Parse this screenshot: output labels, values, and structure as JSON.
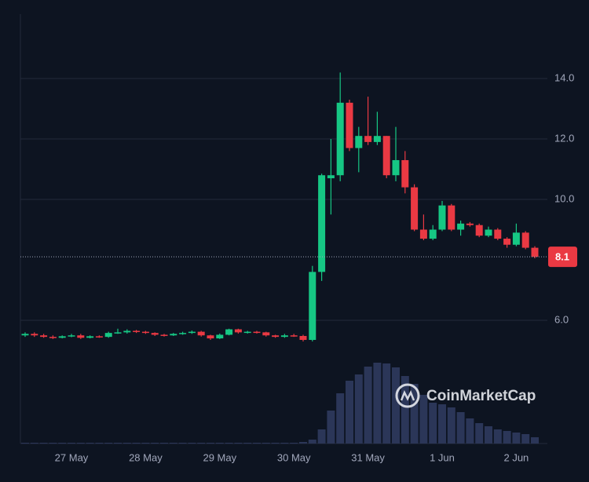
{
  "chart_data": {
    "type": "candlestick",
    "categories": [
      null,
      null,
      null,
      null,
      null,
      "27 May",
      null,
      null,
      null,
      null,
      null,
      null,
      null,
      "28 May",
      null,
      null,
      null,
      null,
      null,
      null,
      null,
      "29 May",
      null,
      null,
      null,
      null,
      null,
      null,
      null,
      "30 May",
      null,
      null,
      null,
      null,
      null,
      null,
      null,
      "31 May",
      null,
      null,
      null,
      null,
      null,
      null,
      null,
      "1 Jun",
      null,
      null,
      null,
      null,
      null,
      null,
      null,
      "2 Jun",
      null,
      null
    ],
    "open": [
      5.5,
      5.55,
      5.5,
      5.45,
      5.42,
      5.47,
      5.5,
      5.42,
      5.47,
      5.45,
      5.58,
      5.6,
      5.65,
      5.62,
      5.58,
      5.52,
      5.5,
      5.55,
      5.58,
      5.62,
      5.5,
      5.4,
      5.52,
      5.7,
      5.6,
      5.62,
      5.6,
      5.5,
      5.45,
      5.5,
      5.48,
      5.35,
      7.6,
      10.7,
      10.8,
      13.2,
      11.7,
      12.1,
      11.9,
      12.1,
      10.8,
      11.3,
      10.4,
      9.0,
      8.7,
      9.0,
      9.8,
      9.0,
      9.2,
      9.15,
      8.8,
      9.0,
      8.7,
      8.5,
      8.9,
      8.4
    ],
    "high": [
      5.6,
      5.6,
      5.55,
      5.5,
      5.5,
      5.55,
      5.55,
      5.5,
      5.5,
      5.62,
      5.72,
      5.7,
      5.68,
      5.65,
      5.6,
      5.55,
      5.58,
      5.62,
      5.66,
      5.65,
      5.52,
      5.56,
      5.72,
      5.72,
      5.65,
      5.65,
      5.62,
      5.52,
      5.55,
      5.55,
      5.52,
      7.8,
      10.85,
      12.0,
      14.2,
      13.3,
      12.4,
      13.4,
      12.9,
      12.1,
      12.4,
      11.6,
      10.5,
      9.5,
      9.15,
      9.95,
      9.85,
      9.3,
      9.25,
      9.2,
      9.1,
      9.05,
      8.75,
      9.2,
      8.95,
      8.45
    ],
    "low": [
      5.45,
      5.45,
      5.42,
      5.38,
      5.4,
      5.44,
      5.38,
      5.4,
      5.42,
      5.42,
      5.55,
      5.56,
      5.58,
      5.55,
      5.48,
      5.46,
      5.48,
      5.52,
      5.55,
      5.46,
      5.35,
      5.38,
      5.5,
      5.56,
      5.56,
      5.56,
      5.46,
      5.42,
      5.42,
      5.45,
      5.3,
      5.3,
      7.3,
      9.5,
      10.6,
      11.6,
      10.9,
      11.8,
      11.8,
      10.7,
      10.6,
      10.2,
      8.95,
      8.65,
      8.65,
      8.95,
      8.95,
      8.8,
      9.1,
      8.75,
      8.75,
      8.65,
      8.4,
      8.45,
      8.35,
      8.05
    ],
    "close": [
      5.55,
      5.5,
      5.45,
      5.42,
      5.47,
      5.5,
      5.42,
      5.47,
      5.45,
      5.58,
      5.6,
      5.65,
      5.62,
      5.58,
      5.52,
      5.5,
      5.55,
      5.58,
      5.62,
      5.5,
      5.4,
      5.52,
      5.7,
      5.6,
      5.62,
      5.6,
      5.5,
      5.45,
      5.5,
      5.48,
      5.35,
      7.6,
      10.8,
      10.8,
      13.2,
      11.7,
      12.1,
      11.9,
      12.1,
      10.8,
      11.3,
      10.4,
      9.0,
      8.7,
      9.0,
      9.8,
      9.0,
      9.2,
      9.15,
      8.8,
      9.0,
      8.7,
      8.5,
      8.9,
      8.4,
      8.1
    ],
    "volume": [
      1,
      1,
      1,
      1,
      1,
      1,
      1,
      1,
      1,
      1,
      1,
      1,
      1,
      1,
      1,
      1,
      1,
      1,
      1,
      1,
      1,
      1,
      1,
      1,
      1,
      1,
      1,
      1,
      1,
      1,
      2,
      5,
      18,
      42,
      64,
      80,
      88,
      98,
      103,
      102,
      97,
      86,
      76,
      62,
      52,
      50,
      46,
      40,
      32,
      26,
      22,
      18,
      16,
      14,
      12,
      8
    ],
    "up_color": "#16c784",
    "down_color": "#ea3943",
    "volume_color": "#2b3658",
    "ylim": [
      1.92,
      16.08
    ],
    "yticks": [
      {
        "value": 6,
        "label": "6.0"
      },
      {
        "value": 10,
        "label": "10.0"
      },
      {
        "value": 12,
        "label": "12.0"
      },
      {
        "value": 14,
        "label": "14.0"
      }
    ],
    "grid": true,
    "last_price": 8.1,
    "watermark": "CoinMarketCap"
  }
}
